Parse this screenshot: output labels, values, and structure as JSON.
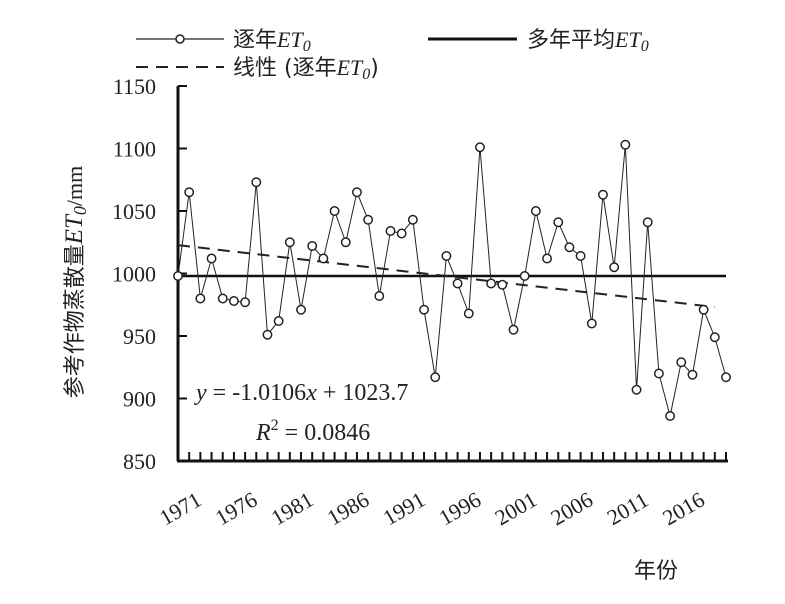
{
  "chart_data": {
    "type": "line",
    "ylabel": "参考作物蒸散量ET₀/mm",
    "xlabel": "年份",
    "xlim": [
      1971,
      2020
    ],
    "ylim": [
      850,
      1150
    ],
    "yticks": [
      850,
      900,
      950,
      1000,
      1050,
      1100,
      1150
    ],
    "xtick_labels": [
      "1971",
      "1976",
      "1981",
      "1986",
      "1991",
      "1996",
      "2001",
      "2006",
      "2011",
      "2016"
    ],
    "grid": false,
    "legend_position": "top",
    "series": [
      {
        "name": "逐年ET₀",
        "style": "thin-line-circle-markers",
        "x": [
          1971,
          1972,
          1973,
          1974,
          1975,
          1976,
          1977,
          1978,
          1979,
          1980,
          1981,
          1982,
          1983,
          1984,
          1985,
          1986,
          1987,
          1988,
          1989,
          1990,
          1991,
          1992,
          1993,
          1994,
          1995,
          1996,
          1997,
          1998,
          1999,
          2000,
          2001,
          2002,
          2003,
          2004,
          2005,
          2006,
          2007,
          2008,
          2009,
          2010,
          2011,
          2012,
          2013,
          2014,
          2015,
          2016,
          2017,
          2018,
          2019,
          2020
        ],
        "values": [
          998,
          1065,
          980,
          1012,
          980,
          978,
          977,
          1073,
          951,
          962,
          1025,
          971,
          1022,
          1012,
          1050,
          1025,
          1065,
          1043,
          982,
          1034,
          1032,
          1043,
          971,
          917,
          1014,
          992,
          968,
          1101,
          992,
          991,
          955,
          998,
          1050,
          1012,
          1041,
          1021,
          1014,
          960,
          1063,
          1005,
          1103,
          907,
          1041,
          920,
          886,
          929,
          919,
          971,
          949,
          917
        ]
      },
      {
        "name": "多年平均ET₀",
        "style": "thick-solid",
        "value": 998
      },
      {
        "name": "线性 (逐年ET₀)",
        "style": "dashed",
        "slope": -1.0106,
        "intercept": 1023.7
      }
    ],
    "annotations": {
      "equation_prefix": "y",
      "equation_mid": " = -1.0106",
      "equation_x": "x",
      "equation_suffix": " + 1023.7",
      "r2_prefix": "R",
      "r2_exp": "2",
      "r2_suffix": " = 0.0846"
    }
  }
}
